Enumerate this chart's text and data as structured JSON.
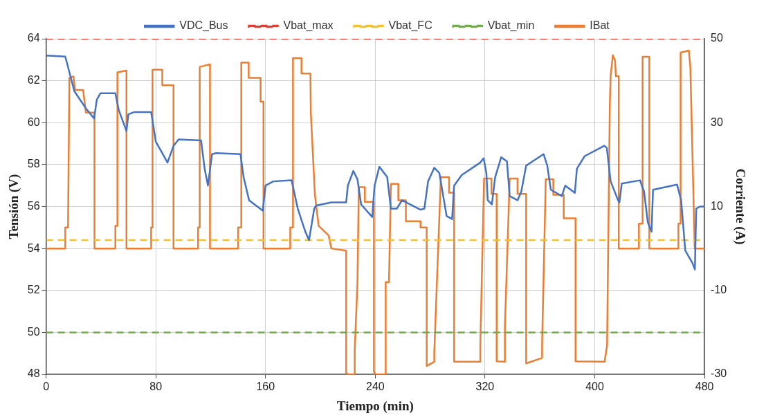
{
  "chart_data": {
    "type": "line",
    "xlabel": "Tiempo (min)",
    "ylabel": "Tensión (V)",
    "y2label": "Corriente (A)",
    "xlim": [
      0,
      480
    ],
    "xticks": [
      0,
      80,
      160,
      240,
      320,
      400,
      480
    ],
    "ylim": [
      48,
      64
    ],
    "yticks": [
      48,
      50,
      52,
      54,
      56,
      58,
      60,
      62,
      64
    ],
    "y2lim": [
      -30,
      50
    ],
    "y2ticks": [
      -30,
      -10,
      10,
      30,
      50
    ],
    "grid": true,
    "legend": "top",
    "marker": "none",
    "line_style": "solid",
    "series": [
      {
        "name": "VDC_Bus",
        "color": "#4472c4",
        "x": [
          0,
          14,
          17,
          20.6,
          28.8,
          35,
          37,
          39.6,
          50.5,
          53,
          58.6,
          60,
          64,
          76.6,
          80,
          88.5,
          93,
          96.6,
          113,
          115.6,
          118,
          121,
          124,
          141.7,
          144,
          148,
          158,
          160,
          165.6,
          179,
          183.5,
          189,
          191.7,
          195.5,
          197,
          208,
          218.8,
          220,
          224,
          227,
          229.7,
          237.8,
          239.5,
          243,
          248.7,
          251.4,
          255.7,
          259.5,
          273,
          275.8,
          278.5,
          283,
          286.7,
          292,
          296,
          297.5,
          303,
          316.6,
          319,
          321,
          322,
          325,
          327.4,
          331.8,
          336,
          338,
          343.7,
          346.4,
          350,
          362.7,
          365.4,
          368,
          376,
          378.5,
          385.5,
          387,
          392.6,
          407,
          408.8,
          411.6,
          417,
          418,
          419.7,
          433,
          436,
          438.7,
          441.4,
          442.5,
          460,
          463,
          466,
          471.3,
          473,
          474,
          476.7,
          480
        ],
        "values": [
          63.2,
          63.15,
          62.4,
          61.5,
          60.7,
          60.2,
          61.1,
          61.4,
          61.4,
          60.6,
          59.6,
          60.4,
          60.5,
          60.5,
          59.1,
          58.1,
          58.9,
          59.2,
          59.15,
          57.8,
          57,
          58.5,
          58.55,
          58.5,
          57.4,
          56.3,
          55.8,
          57,
          57.2,
          57.25,
          55.9,
          54.8,
          54.4,
          55.9,
          56.05,
          56.2,
          56.2,
          57,
          57.7,
          57.3,
          56.1,
          55.5,
          57,
          57.9,
          57.4,
          55.9,
          55.9,
          56.3,
          55.85,
          55.9,
          57.2,
          57.85,
          57.6,
          55.55,
          55.4,
          57,
          57.5,
          58.1,
          58.3,
          57.6,
          56.3,
          56.1,
          57.4,
          58.35,
          58.15,
          56.5,
          56.3,
          56.7,
          57.95,
          58.5,
          57.95,
          56.8,
          56.5,
          57,
          56.65,
          57.8,
          58.4,
          58.9,
          58.8,
          57.2,
          56.3,
          56.2,
          57.1,
          57.25,
          56.7,
          55.25,
          54.8,
          56.8,
          57.05,
          56.3,
          53.9,
          53.3,
          53,
          55.9,
          56,
          56
        ]
      },
      {
        "name": "Vbat_max",
        "color": "#e03c31",
        "line_style": "dashed",
        "x": [
          0,
          480
        ],
        "values": [
          64,
          64
        ]
      },
      {
        "name": "Vbat_FC",
        "color": "#f2c12e",
        "line_style": "dashed",
        "x": [
          0,
          480
        ],
        "values": [
          54.4,
          54.4
        ]
      },
      {
        "name": "Vbat_min",
        "color": "#70ad47",
        "line_style": "dashed",
        "x": [
          0,
          480
        ],
        "values": [
          50,
          50
        ]
      },
      {
        "name": "IBat",
        "color": "#ed7d31",
        "axis": "y2",
        "x": [
          0,
          14,
          14,
          16,
          17,
          20,
          21,
          27,
          29,
          35.3,
          35.3,
          50.5,
          50.5,
          52,
          52,
          58.6,
          58.6,
          76.6,
          76.6,
          77.6,
          77.6,
          84.7,
          84.7,
          92.9,
          92.9,
          110.8,
          110.8,
          112,
          112,
          119.5,
          119.5,
          140,
          140,
          142.3,
          142.3,
          147.7,
          147.7,
          156.4,
          156.4,
          158.5,
          158.5,
          178,
          178,
          180,
          180,
          186.2,
          186.2,
          192.7,
          193,
          196,
          198.7,
          206,
          208,
          218.8,
          218.8,
          220,
          225,
          225,
          227,
          228,
          232.4,
          232.4,
          239,
          239,
          240,
          247.6,
          247.6,
          250,
          251.4,
          256.8,
          256.8,
          262.3,
          262.3,
          273,
          273,
          277.5,
          277.5,
          283,
          283,
          287.8,
          293.8,
          293.8,
          297.5,
          297.5,
          316.6,
          316.6,
          319.3,
          324.7,
          324.7,
          328.5,
          328.5,
          334.5,
          334.5,
          338,
          343.7,
          343.7,
          350,
          350,
          361.6,
          361.6,
          364.3,
          369.8,
          369.8,
          377.4,
          377.4,
          386,
          386,
          407.2,
          409,
          411,
          411.6,
          413.2,
          414.8,
          415.4,
          417.5,
          417.5,
          432.2,
          432.2,
          434.9,
          434.9,
          439.8,
          439.8,
          461,
          461,
          462.6,
          462.6,
          468.6,
          469.7,
          469.7,
          472.9,
          472.9,
          480
        ],
        "values": [
          0,
          0,
          5,
          5,
          40.7,
          41,
          37.8,
          37.8,
          32.4,
          32.4,
          0,
          0,
          5.4,
          5.4,
          42,
          42.4,
          0,
          0,
          5,
          5,
          42.6,
          42.6,
          38.9,
          38.9,
          0,
          0,
          5,
          5,
          43.3,
          43.9,
          0,
          0,
          5,
          5,
          44.3,
          44.3,
          40.7,
          40.7,
          35,
          35,
          0,
          0,
          5,
          5,
          45.4,
          45.4,
          41.7,
          41.7,
          32.4,
          12.8,
          5.4,
          3.1,
          0,
          -0.5,
          -29.6,
          -30,
          -30,
          -24.3,
          -8.3,
          14.6,
          14.6,
          11.1,
          11.1,
          -29.3,
          -30,
          -30,
          -8,
          -8,
          15.4,
          15.4,
          11.5,
          11.5,
          6.5,
          6.5,
          5,
          5,
          -28,
          -27,
          -25,
          17,
          17,
          13.3,
          13.3,
          -27,
          -27,
          -22.8,
          16.7,
          16.7,
          13,
          13,
          -26.9,
          -27,
          -18.7,
          16.7,
          16.7,
          13,
          13,
          -27.4,
          -26.1,
          -23.1,
          16.5,
          16.5,
          12.8,
          12.8,
          7.2,
          7.2,
          -26.9,
          -27,
          -23.1,
          34.3,
          41.1,
          46.1,
          44.8,
          41.1,
          41.1,
          0,
          0,
          5.9,
          5.9,
          45.7,
          45.7,
          0,
          0,
          5.9,
          5.9,
          46.7,
          47.2,
          43.3,
          43.3,
          0,
          0,
          0
        ]
      }
    ]
  }
}
